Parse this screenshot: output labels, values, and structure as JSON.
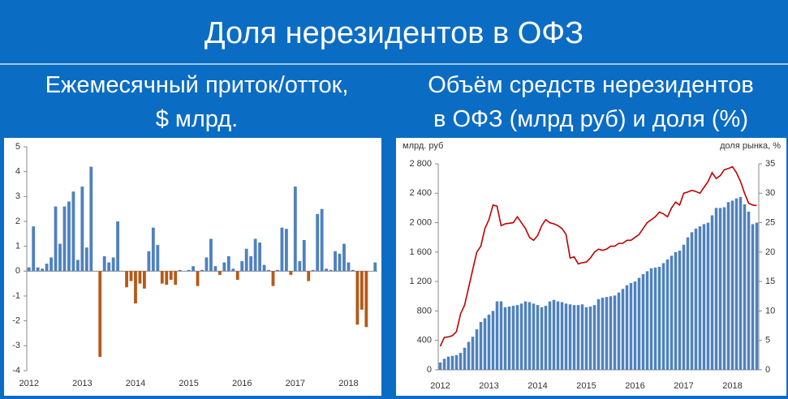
{
  "title": "Доля нерезидентов в ОФЗ",
  "chart_data": [
    {
      "type": "bar",
      "title": [
        "Ежемесячный приток/отток,",
        "$ млрд."
      ],
      "categories": [
        "2012",
        null,
        null,
        null,
        null,
        null,
        null,
        null,
        null,
        null,
        null,
        null,
        "2013",
        null,
        null,
        null,
        null,
        null,
        null,
        null,
        null,
        null,
        null,
        null,
        "2014",
        null,
        null,
        null,
        null,
        null,
        null,
        null,
        null,
        null,
        null,
        null,
        "2015",
        null,
        null,
        null,
        null,
        null,
        null,
        null,
        null,
        null,
        null,
        null,
        "2016",
        null,
        null,
        null,
        null,
        null,
        null,
        null,
        null,
        null,
        null,
        null,
        "2017",
        null,
        null,
        null,
        null,
        null,
        null,
        null,
        null,
        null,
        null,
        null,
        "2018",
        null,
        null,
        null,
        null,
        null,
        null
      ],
      "series": [
        {
          "color": "#4f81bd",
          "negative_color": "#b55a17",
          "values": [
            0.15,
            1.8,
            0.15,
            0.1,
            0.3,
            0.55,
            2.6,
            1.1,
            2.6,
            2.8,
            3.2,
            0.45,
            3.4,
            0.95,
            4.2,
            0,
            -3.45,
            0.6,
            0.35,
            0.55,
            2.0,
            0,
            -0.65,
            -0.4,
            -1.3,
            -0.5,
            -0.7,
            0.8,
            1.75,
            1.05,
            -0.5,
            -0.55,
            -0.35,
            -0.55,
            0.05,
            0,
            0.05,
            0.2,
            -0.6,
            0.05,
            0.55,
            1.3,
            0.2,
            -0.15,
            0.35,
            0.6,
            0.1,
            -0.35,
            0.4,
            0.9,
            0.6,
            1.3,
            1.15,
            0.25,
            0.05,
            -0.6,
            0.05,
            1.75,
            1.7,
            -0.15,
            3.4,
            0.4,
            1.25,
            -0.4,
            0.05,
            2.3,
            2.5,
            0.1,
            0.05,
            0.8,
            0.7,
            1.1,
            0.35,
            0.05,
            -2.15,
            -1.55,
            -2.25,
            0,
            0.35
          ]
        }
      ],
      "ylim": [
        -4,
        5
      ],
      "yticks": [
        -4,
        -3,
        -2,
        -1,
        0,
        1,
        2,
        3,
        4,
        5
      ],
      "grid": false
    },
    {
      "type": "combo",
      "title": [
        "Объём средств нерезидентов",
        "в ОФЗ (млрд руб) и доля (%)"
      ],
      "ylabel": "млрд. руб",
      "y2label": "доля рынка, %",
      "categories": [
        "2012",
        null,
        null,
        null,
        null,
        null,
        null,
        null,
        null,
        null,
        null,
        null,
        "2013",
        null,
        null,
        null,
        null,
        null,
        null,
        null,
        null,
        null,
        null,
        null,
        "2014",
        null,
        null,
        null,
        null,
        null,
        null,
        null,
        null,
        null,
        null,
        null,
        "2015",
        null,
        null,
        null,
        null,
        null,
        null,
        null,
        null,
        null,
        null,
        null,
        "2016",
        null,
        null,
        null,
        null,
        null,
        null,
        null,
        null,
        null,
        null,
        null,
        "2017",
        null,
        null,
        null,
        null,
        null,
        null,
        null,
        null,
        null,
        null,
        null,
        "2018",
        null,
        null,
        null,
        null,
        null,
        null
      ],
      "series": [
        {
          "type": "bar",
          "color": "#4f81bd",
          "values": [
            100,
            150,
            180,
            190,
            200,
            230,
            300,
            380,
            450,
            550,
            650,
            700,
            750,
            800,
            930,
            930,
            850,
            860,
            870,
            880,
            900,
            930,
            920,
            900,
            880,
            850,
            870,
            930,
            950,
            930,
            920,
            900,
            890,
            880,
            880,
            890,
            850,
            860,
            880,
            960,
            980,
            990,
            1000,
            1010,
            1050,
            1100,
            1150,
            1180,
            1200,
            1250,
            1300,
            1340,
            1380,
            1390,
            1400,
            1450,
            1500,
            1550,
            1600,
            1620,
            1700,
            1800,
            1870,
            1920,
            1950,
            1980,
            2000,
            2100,
            2200,
            2200,
            2210,
            2280,
            2300,
            2330,
            2350,
            2250,
            2150,
            1980,
            2000
          ]
        },
        {
          "type": "line",
          "axis": "y2",
          "color": "#c00000",
          "values": [
            4,
            5.5,
            5.6,
            5.8,
            6.5,
            9.5,
            11,
            14,
            17,
            20,
            21,
            24,
            25.5,
            28,
            27.8,
            24.5,
            24.8,
            24.9,
            25,
            26,
            25,
            24,
            22.5,
            22,
            22.8,
            24.5,
            25.5,
            25,
            24.8,
            24.5,
            24,
            23,
            19,
            19.2,
            18,
            18.2,
            18.3,
            19,
            20,
            20.5,
            20.3,
            20.5,
            21,
            21,
            21.5,
            21.5,
            22,
            22,
            22.5,
            23,
            24,
            25,
            25.5,
            26,
            26.8,
            26.5,
            26,
            27.5,
            28.5,
            28,
            30,
            30.2,
            30.5,
            30.3,
            30,
            31,
            32,
            33.5,
            32.5,
            33,
            34,
            34.2,
            34.5,
            33.5,
            32,
            30,
            28.3,
            28,
            27.9
          ]
        }
      ],
      "ylim": [
        0,
        2800
      ],
      "yticks": [
        0,
        400,
        800,
        {
          "value": 1200,
          "label": "1 200"
        },
        {
          "value": 1600,
          "label": "1 600"
        },
        {
          "value": 2000,
          "label": "2 000"
        },
        {
          "value": 2400,
          "label": "2 400"
        },
        {
          "value": 2800,
          "label": "2 800"
        }
      ],
      "y2lim": [
        0,
        35
      ],
      "y2ticks": [
        0,
        5,
        10,
        15,
        20,
        25,
        30,
        35
      ],
      "grid": false
    }
  ]
}
